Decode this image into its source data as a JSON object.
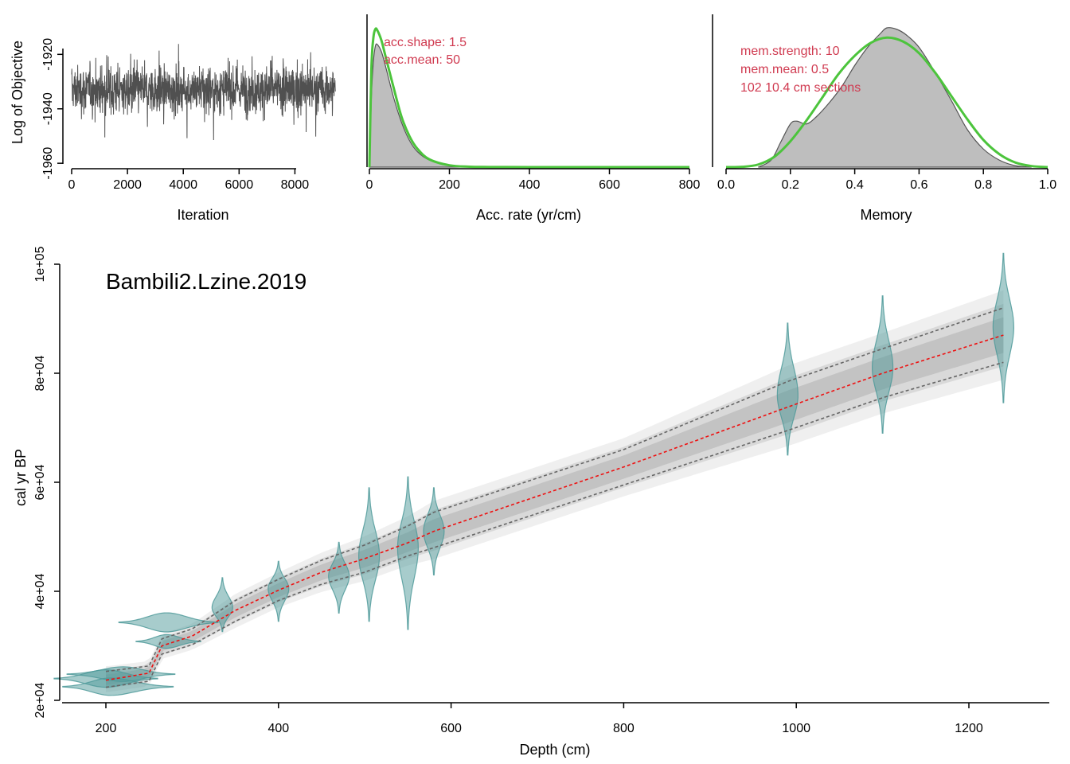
{
  "chart_data": [
    {
      "type": "line",
      "panel": "mcmc-trace",
      "xlabel": "Iteration",
      "ylabel": "Log of Objective",
      "xlim": [
        0,
        9500
      ],
      "ylim": [
        -1962,
        -1905
      ],
      "xticks": [
        0,
        2000,
        4000,
        6000,
        8000
      ],
      "yticks": [
        -1960,
        -1940,
        -1920
      ],
      "ytick_labels": [
        "-1960",
        "-1940",
        "-1920"
      ],
      "n_iterations": 9450,
      "trace_mean": -1933,
      "trace_range": [
        -1962,
        -1909
      ],
      "colors": {
        "trace": "#505050"
      }
    },
    {
      "type": "area",
      "panel": "accumulation-rate",
      "xlabel": "Acc. rate (yr/cm)",
      "xlim": [
        0,
        800
      ],
      "xticks": [
        0,
        200,
        400,
        600,
        800
      ],
      "posterior_density": [
        [
          0,
          0
        ],
        [
          5,
          0.5
        ],
        [
          10,
          0.75
        ],
        [
          15,
          0.86
        ],
        [
          20,
          0.87
        ],
        [
          30,
          0.82
        ],
        [
          40,
          0.72
        ],
        [
          60,
          0.5
        ],
        [
          80,
          0.32
        ],
        [
          100,
          0.19
        ],
        [
          120,
          0.11
        ],
        [
          150,
          0.05
        ],
        [
          200,
          0.013
        ],
        [
          250,
          0.004
        ],
        [
          300,
          0.001
        ],
        [
          400,
          0
        ],
        [
          800,
          0
        ]
      ],
      "prior_density": [
        [
          0,
          0
        ],
        [
          5,
          0.7
        ],
        [
          10,
          0.92
        ],
        [
          15,
          0.98
        ],
        [
          20,
          0.97
        ],
        [
          30,
          0.9
        ],
        [
          40,
          0.79
        ],
        [
          60,
          0.57
        ],
        [
          80,
          0.36
        ],
        [
          100,
          0.22
        ],
        [
          120,
          0.13
        ],
        [
          150,
          0.055
        ],
        [
          200,
          0.013
        ],
        [
          250,
          0.003
        ],
        [
          300,
          0.001
        ],
        [
          400,
          0
        ],
        [
          800,
          0
        ]
      ],
      "annotations": [
        "acc.shape:  1.5",
        "acc.mean:  50"
      ],
      "colors": {
        "posterior_fill": "#bebebe",
        "posterior_line": "#555555",
        "prior": "#4cc43c",
        "annotation": "#d03a50"
      }
    },
    {
      "type": "area",
      "panel": "memory",
      "xlabel": "Memory",
      "xlim": [
        0,
        1
      ],
      "xticks": [
        0.0,
        0.2,
        0.4,
        0.6,
        0.8,
        1.0
      ],
      "xtick_labels": [
        "0.0",
        "0.2",
        "0.4",
        "0.6",
        "0.8",
        "1.0"
      ],
      "posterior_density": [
        [
          0.1,
          0
        ],
        [
          0.14,
          0.05
        ],
        [
          0.17,
          0.18
        ],
        [
          0.2,
          0.31
        ],
        [
          0.22,
          0.33
        ],
        [
          0.25,
          0.31
        ],
        [
          0.28,
          0.36
        ],
        [
          0.32,
          0.46
        ],
        [
          0.36,
          0.58
        ],
        [
          0.4,
          0.73
        ],
        [
          0.44,
          0.86
        ],
        [
          0.48,
          0.96
        ],
        [
          0.5,
          1.0
        ],
        [
          0.53,
          0.99
        ],
        [
          0.56,
          0.95
        ],
        [
          0.6,
          0.86
        ],
        [
          0.65,
          0.68
        ],
        [
          0.7,
          0.48
        ],
        [
          0.75,
          0.27
        ],
        [
          0.8,
          0.13
        ],
        [
          0.85,
          0.05
        ],
        [
          0.9,
          0.01
        ],
        [
          0.95,
          0
        ]
      ],
      "prior_density": [
        [
          0,
          0
        ],
        [
          0.05,
          0.002
        ],
        [
          0.1,
          0.02
        ],
        [
          0.15,
          0.08
        ],
        [
          0.2,
          0.2
        ],
        [
          0.25,
          0.36
        ],
        [
          0.3,
          0.54
        ],
        [
          0.35,
          0.72
        ],
        [
          0.4,
          0.86
        ],
        [
          0.45,
          0.96
        ],
        [
          0.5,
          1.0
        ],
        [
          0.55,
          0.97
        ],
        [
          0.6,
          0.88
        ],
        [
          0.65,
          0.73
        ],
        [
          0.7,
          0.55
        ],
        [
          0.75,
          0.37
        ],
        [
          0.8,
          0.21
        ],
        [
          0.85,
          0.1
        ],
        [
          0.9,
          0.035
        ],
        [
          0.95,
          0.008
        ],
        [
          1.0,
          0
        ]
      ],
      "annotations": [
        "mem.strength: 10",
        "mem.mean: 0.5",
        "102 10.4 cm sections"
      ],
      "colors": {
        "posterior_fill": "#bebebe",
        "posterior_line": "#555555",
        "prior": "#4cc43c",
        "annotation": "#d03a50"
      }
    },
    {
      "type": "line",
      "panel": "age-depth",
      "title": "Bambili2.Lzine.2019",
      "xlabel": "Depth (cm)",
      "ylabel": "cal yr BP",
      "xlim": [
        150,
        1290
      ],
      "ylim": [
        19500,
        103000
      ],
      "xticks": [
        200,
        400,
        600,
        800,
        1000,
        1200
      ],
      "yticks": [
        20000,
        40000,
        60000,
        80000,
        100000
      ],
      "ytick_labels": [
        "2e+04",
        "4e+04",
        "6e+04",
        "8e+04",
        "1e+05"
      ],
      "grid": false,
      "median": [
        [
          200,
          23700
        ],
        [
          250,
          25000
        ],
        [
          265,
          30000
        ],
        [
          300,
          31800
        ],
        [
          350,
          36500
        ],
        [
          400,
          40200
        ],
        [
          450,
          43500
        ],
        [
          500,
          46000
        ],
        [
          550,
          48900
        ],
        [
          580,
          51000
        ],
        [
          800,
          62800
        ],
        [
          990,
          73800
        ],
        [
          1100,
          80000
        ],
        [
          1240,
          87000
        ]
      ],
      "range_upper": [
        [
          200,
          25300
        ],
        [
          250,
          26300
        ],
        [
          265,
          31300
        ],
        [
          300,
          33100
        ],
        [
          350,
          38300
        ],
        [
          400,
          42200
        ],
        [
          450,
          45700
        ],
        [
          500,
          48500
        ],
        [
          550,
          52000
        ],
        [
          580,
          54500
        ],
        [
          800,
          66000
        ],
        [
          990,
          78500
        ],
        [
          1100,
          84500
        ],
        [
          1240,
          92000
        ]
      ],
      "range_lower": [
        [
          200,
          22400
        ],
        [
          250,
          23500
        ],
        [
          265,
          28500
        ],
        [
          300,
          30200
        ],
        [
          350,
          34500
        ],
        [
          400,
          38300
        ],
        [
          450,
          41300
        ],
        [
          500,
          43500
        ],
        [
          550,
          46500
        ],
        [
          580,
          48000
        ],
        [
          800,
          59500
        ],
        [
          990,
          69500
        ],
        [
          1100,
          75500
        ],
        [
          1240,
          82000
        ]
      ],
      "dates": [
        {
          "depth": 200,
          "age": 24000,
          "lo": 22500,
          "hi": 25700,
          "orientation": "horizontal",
          "lo_depth": 140,
          "hi_depth": 260
        },
        {
          "depth": 205,
          "age": 22500,
          "lo": 20800,
          "hi": 24000,
          "orientation": "horizontal",
          "lo_depth": 150,
          "hi_depth": 278
        },
        {
          "depth": 220,
          "age": 24800,
          "lo": 23500,
          "hi": 26200,
          "orientation": "horizontal",
          "lo_depth": 155,
          "hi_depth": 280
        },
        {
          "depth": 270,
          "age": 30800,
          "lo": 29500,
          "hi": 32000,
          "orientation": "horizontal",
          "lo_depth": 235,
          "hi_depth": 310
        },
        {
          "depth": 270,
          "age": 34300,
          "lo": 32500,
          "hi": 36000,
          "orientation": "horizontal",
          "lo_depth": 215,
          "hi_depth": 330
        },
        {
          "depth": 335,
          "age": 37000,
          "lo": 32600,
          "hi": 42500
        },
        {
          "depth": 400,
          "age": 40500,
          "lo": 34500,
          "hi": 45500
        },
        {
          "depth": 470,
          "age": 42800,
          "lo": 36000,
          "hi": 49000
        },
        {
          "depth": 505,
          "age": 46500,
          "lo": 34500,
          "hi": 59000
        },
        {
          "depth": 550,
          "age": 48000,
          "lo": 33000,
          "hi": 61000
        },
        {
          "depth": 580,
          "age": 51000,
          "lo": 43000,
          "hi": 59000
        },
        {
          "depth": 990,
          "age": 76000,
          "lo": 65000,
          "hi": 89200
        },
        {
          "depth": 1100,
          "age": 81000,
          "lo": 69000,
          "hi": 94200
        },
        {
          "depth": 1240,
          "age": 88500,
          "lo": 74600,
          "hi": 102000
        }
      ],
      "colors": {
        "median": "#ee1111",
        "range": "#666666",
        "dates_fill": "#4f9a9a",
        "shade": "#9a9a9a"
      }
    }
  ]
}
